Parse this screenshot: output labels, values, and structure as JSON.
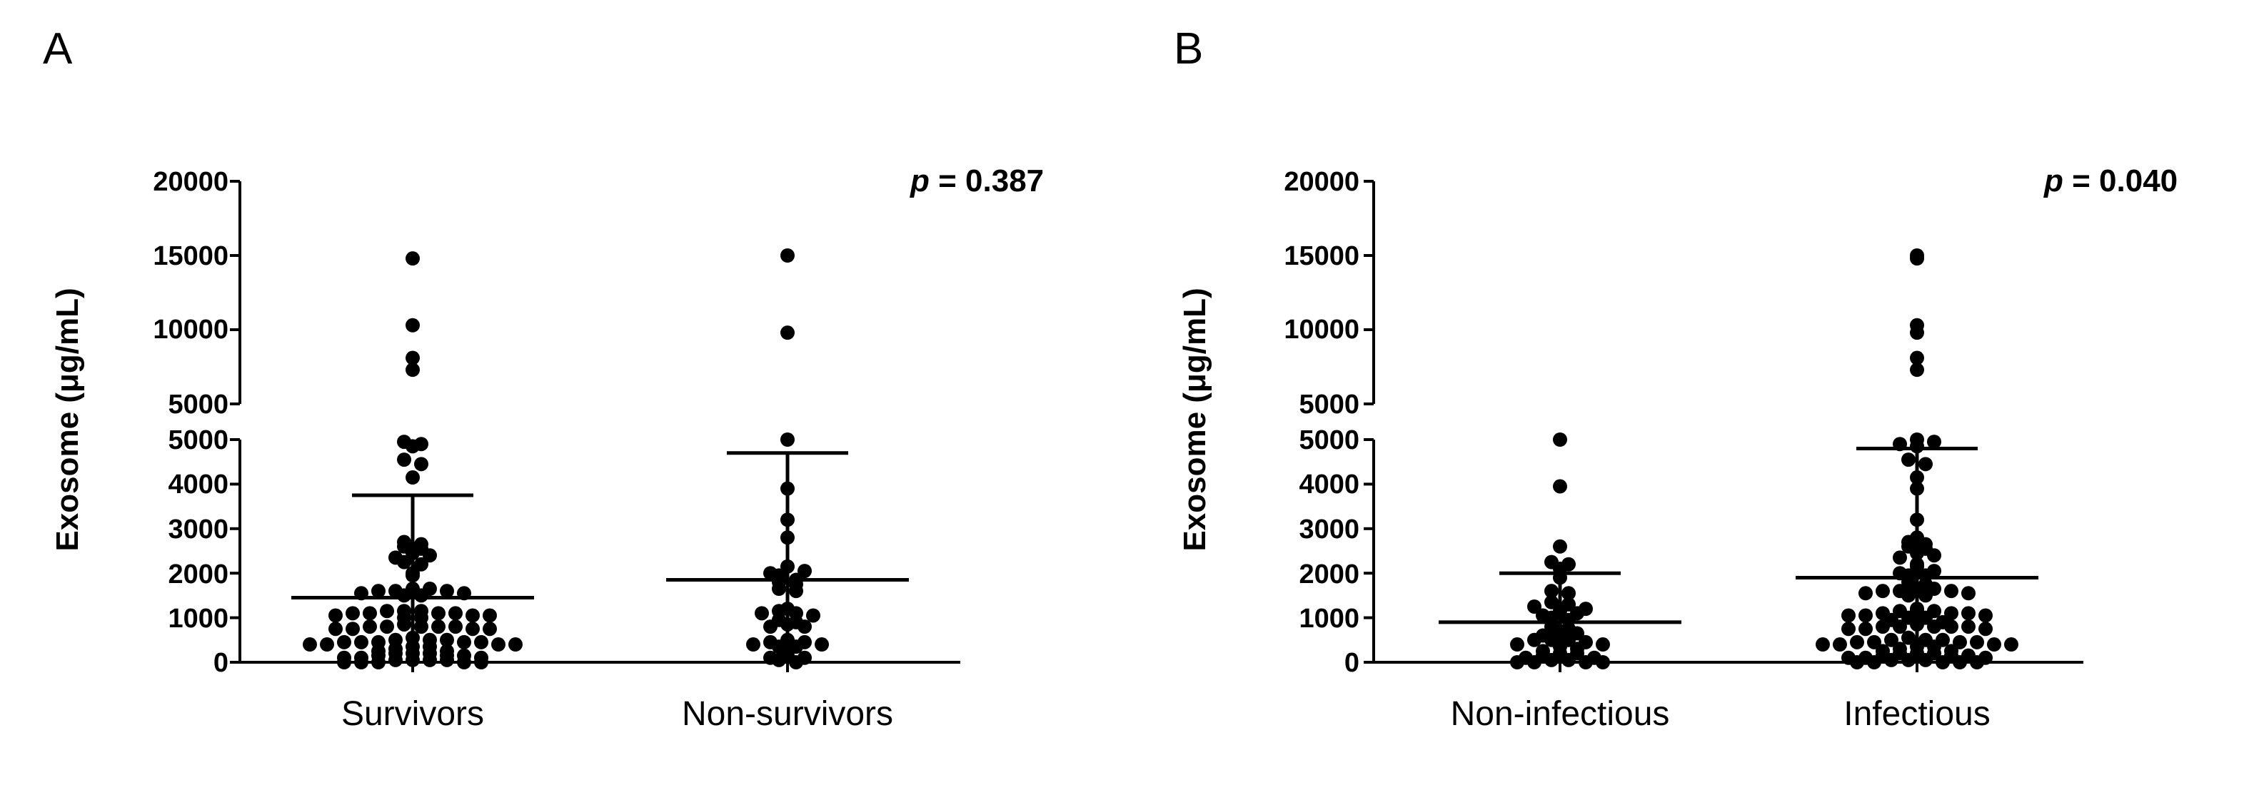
{
  "chart_data": [
    {
      "type": "scatter",
      "panel_label": "A",
      "annotation_prefix": "p",
      "annotation_value": " = 0.387",
      "xlabel": "",
      "ylabel": "Exosome (μg/mL)",
      "categories": [
        "Survivors",
        "Non-survivors"
      ],
      "y_axis_broken": true,
      "lower_segment": {
        "ylim": [
          0,
          5000
        ],
        "ticks": [
          "0",
          "1000",
          "2000",
          "3000",
          "4000",
          "5000"
        ]
      },
      "upper_segment": {
        "ylim": [
          5000,
          20000
        ],
        "ticks": [
          "5000",
          "10000",
          "15000",
          "20000"
        ]
      },
      "groups": [
        {
          "name": "Survivors",
          "mean": 1450,
          "error_top": 3750,
          "error_bottom": 0,
          "points": [
            14800,
            10300,
            8100,
            7300,
            4950,
            4900,
            4850,
            4550,
            4450,
            4150,
            2700,
            2650,
            2600,
            2550,
            2450,
            2400,
            2350,
            2250,
            2200,
            2000,
            1950,
            1650,
            1650,
            1600,
            1600,
            1600,
            1550,
            1550,
            1500,
            1500,
            1150,
            1150,
            1150,
            1100,
            1100,
            1100,
            1100,
            1050,
            1050,
            1050,
            1000,
            1000,
            850,
            800,
            800,
            800,
            800,
            800,
            750,
            750,
            750,
            750,
            550,
            500,
            500,
            500,
            450,
            450,
            450,
            450,
            450,
            400,
            400,
            400,
            400,
            350,
            350,
            300,
            250,
            250,
            200,
            200,
            200,
            150,
            150,
            150,
            100,
            100,
            100,
            50,
            50,
            50,
            50,
            0,
            0,
            0,
            0,
            0
          ]
        },
        {
          "name": "Non-survivors",
          "mean": 1850,
          "error_top": 4700,
          "error_bottom": 0,
          "points": [
            15000,
            9800,
            5000,
            3900,
            3200,
            2800,
            2150,
            2050,
            2000,
            1950,
            1850,
            1800,
            1750,
            1650,
            1600,
            1200,
            1150,
            1100,
            1100,
            1050,
            950,
            900,
            850,
            800,
            800,
            500,
            450,
            450,
            400,
            400,
            350,
            350,
            150,
            100,
            100,
            50,
            0
          ]
        }
      ]
    },
    {
      "type": "scatter",
      "panel_label": "B",
      "annotation_prefix": "p",
      "annotation_value": " = 0.040",
      "xlabel": "",
      "ylabel": "Exosome (μg/mL)",
      "categories": [
        "Non-infectious",
        "Infectious"
      ],
      "y_axis_broken": true,
      "lower_segment": {
        "ylim": [
          0,
          5000
        ],
        "ticks": [
          "0",
          "1000",
          "2000",
          "3000",
          "4000",
          "5000"
        ]
      },
      "upper_segment": {
        "ylim": [
          5000,
          20000
        ],
        "ticks": [
          "5000",
          "10000",
          "15000",
          "20000"
        ]
      },
      "groups": [
        {
          "name": "Non-infectious",
          "mean": 900,
          "error_top": 2000,
          "error_bottom": 0,
          "points": [
            5000,
            3950,
            2600,
            2250,
            2200,
            2100,
            1900,
            1600,
            1550,
            1350,
            1300,
            1250,
            1200,
            1150,
            1100,
            1050,
            1000,
            950,
            800,
            750,
            700,
            650,
            600,
            500,
            500,
            500,
            450,
            400,
            400,
            350,
            300,
            250,
            200,
            200,
            150,
            100,
            100,
            50,
            50,
            0,
            0,
            0,
            0
          ]
        },
        {
          "name": "Infectious",
          "mean": 1900,
          "error_top": 4800,
          "error_bottom": 0,
          "points": [
            15000,
            14800,
            10300,
            9800,
            8100,
            7300,
            5000,
            4950,
            4900,
            4850,
            4550,
            4450,
            4150,
            3900,
            3200,
            2800,
            2700,
            2650,
            2600,
            2550,
            2450,
            2400,
            2350,
            2200,
            2150,
            2050,
            2000,
            1950,
            1950,
            1800,
            1750,
            1650,
            1650,
            1600,
            1600,
            1600,
            1550,
            1550,
            1500,
            1500,
            1200,
            1150,
            1150,
            1150,
            1100,
            1100,
            1100,
            1050,
            1050,
            1050,
            1000,
            1000,
            950,
            900,
            850,
            800,
            800,
            800,
            800,
            800,
            750,
            750,
            750,
            550,
            500,
            500,
            500,
            450,
            450,
            450,
            450,
            400,
            400,
            400,
            400,
            350,
            350,
            300,
            250,
            250,
            200,
            200,
            200,
            150,
            150,
            150,
            100,
            100,
            100,
            50,
            50,
            50,
            0,
            0,
            0,
            0,
            0
          ]
        }
      ]
    }
  ]
}
